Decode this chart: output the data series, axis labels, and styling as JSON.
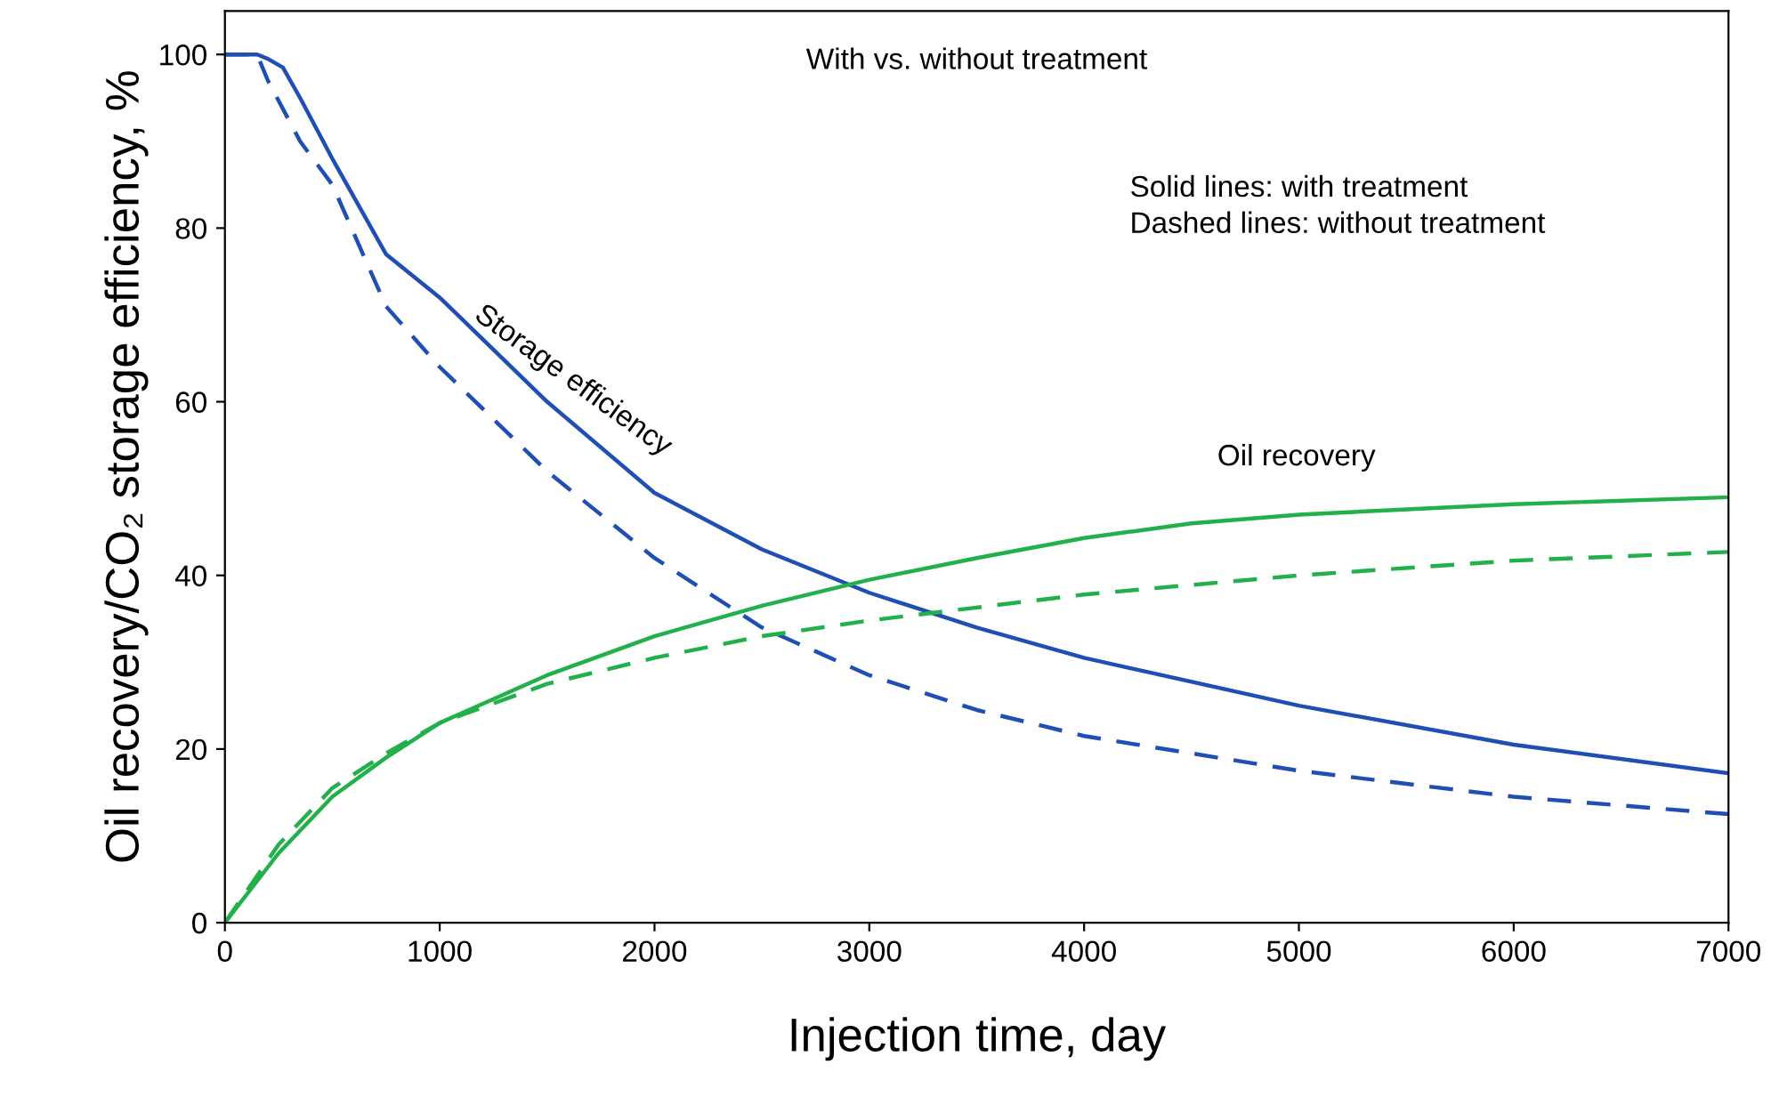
{
  "chart_data": {
    "type": "line",
    "xlabel": "Injection time, day",
    "ylabel": "Oil recovery/CO₂ storage efficiency, %",
    "xlim": [
      0,
      7000
    ],
    "xticks": [
      0,
      1000,
      2000,
      3000,
      4000,
      5000,
      6000,
      7000
    ],
    "ylim": [
      0,
      105
    ],
    "yticks": [
      0,
      20,
      40,
      60,
      80,
      100
    ],
    "grid": false,
    "legend": false,
    "series": [
      {
        "color": "#1f4fb5",
        "line_style": "solid",
        "x": [
          0,
          150,
          200,
          270,
          350,
          500,
          750,
          1000,
          1500,
          2000,
          2500,
          2900,
          3000,
          3500,
          4000,
          5000,
          6000,
          7000
        ],
        "values": [
          100,
          100,
          99.5,
          98.5,
          95,
          88,
          77,
          72,
          60,
          49.5,
          43,
          39,
          38,
          34,
          30.5,
          25,
          20.5,
          17.2
        ]
      },
      {
        "color": "#1f4fb5",
        "line_style": "dashed",
        "x": [
          0,
          150,
          200,
          350,
          500,
          750,
          1000,
          1500,
          2000,
          2500,
          3000,
          3500,
          4000,
          5000,
          6000,
          7000
        ],
        "values": [
          100,
          100,
          97,
          90,
          85,
          71,
          64,
          52,
          42,
          34,
          28.5,
          24.5,
          21.5,
          17.5,
          14.5,
          12.5
        ]
      },
      {
        "color": "#22b04b",
        "line_style": "solid",
        "x": [
          0,
          250,
          500,
          750,
          1000,
          1500,
          2000,
          2500,
          3000,
          3500,
          4000,
          4500,
          5000,
          6000,
          7000
        ],
        "values": [
          0,
          8,
          14.5,
          19,
          23,
          28.5,
          33,
          36.5,
          39.5,
          42,
          44.3,
          46,
          47,
          48.2,
          49
        ]
      },
      {
        "color": "#22b04b",
        "line_style": "dashed",
        "x": [
          0,
          250,
          500,
          750,
          1000,
          1500,
          2000,
          2500,
          3000,
          4000,
          5000,
          6000,
          7000
        ],
        "values": [
          0,
          9,
          15.5,
          19.5,
          23,
          27.5,
          30.5,
          33,
          34.8,
          37.8,
          40,
          41.7,
          42.7
        ]
      }
    ],
    "annotations": [
      "With vs. without treatment",
      "Solid lines: with treatment\nDashed lines: without treatment",
      "Storage efficiency",
      "Oil recovery"
    ]
  }
}
